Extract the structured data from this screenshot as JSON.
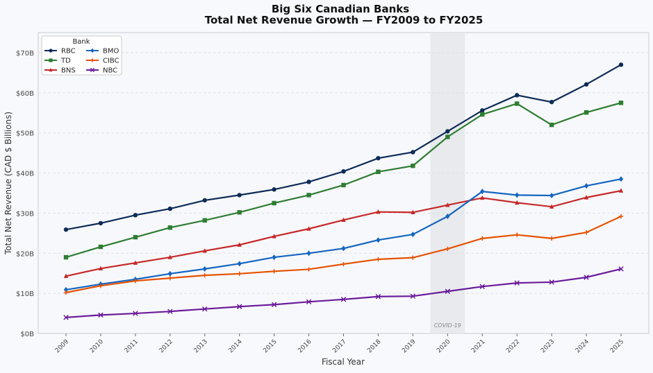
{
  "chart_data": {
    "type": "line",
    "title": "Big Six Canadian Banks",
    "subtitle": "Total Net Revenue Growth — FY2009 to FY2025",
    "xlabel": "Fiscal Year",
    "ylabel": "Total Net Revenue (CAD $ Billions)",
    "ylim": [
      0,
      75
    ],
    "yticks": [
      0,
      10,
      20,
      30,
      40,
      50,
      60,
      70
    ],
    "ytick_labels": [
      "$0B",
      "$10B",
      "$20B",
      "$30B",
      "$40B",
      "$50B",
      "$60B",
      "$70B"
    ],
    "x": [
      "2009",
      "2010",
      "2011",
      "2012",
      "2013",
      "2014",
      "2015",
      "2016",
      "2017",
      "2018",
      "2019",
      "2020",
      "2021",
      "2022",
      "2023",
      "2024",
      "2025"
    ],
    "grid": true,
    "legend": {
      "title": "Bank",
      "placement": "top-left"
    },
    "annotation": {
      "label": "COVID-19",
      "x": "2020"
    },
    "series": [
      {
        "name": "RBC",
        "color": "#0d2b57",
        "marker": "circle",
        "values": [
          25.9,
          27.5,
          29.5,
          31.1,
          33.2,
          34.5,
          35.9,
          37.8,
          40.4,
          43.7,
          45.2,
          50.4,
          55.6,
          59.4,
          57.7,
          62.1,
          67.0
        ]
      },
      {
        "name": "TD",
        "color": "#2e7d32",
        "marker": "square",
        "values": [
          19.0,
          21.6,
          24.0,
          26.4,
          28.2,
          30.2,
          32.5,
          34.5,
          37.0,
          40.3,
          41.8,
          49.0,
          54.6,
          57.3,
          52.0,
          55.1,
          57.5
        ]
      },
      {
        "name": "BNS",
        "color": "#c62828",
        "marker": "triangle",
        "values": [
          14.3,
          16.2,
          17.6,
          19.0,
          20.6,
          22.1,
          24.2,
          26.1,
          28.3,
          30.3,
          30.2,
          32.0,
          33.8,
          32.6,
          31.6,
          33.9,
          35.6
        ]
      },
      {
        "name": "BMO",
        "color": "#1565c0",
        "marker": "diamond",
        "values": [
          10.9,
          12.3,
          13.5,
          14.9,
          16.1,
          17.4,
          19.0,
          20.0,
          21.2,
          23.3,
          24.7,
          29.2,
          35.4,
          34.5,
          34.4,
          36.8,
          38.5
        ]
      },
      {
        "name": "CIBC",
        "color": "#e65100",
        "marker": "plus",
        "values": [
          10.2,
          11.9,
          13.1,
          13.8,
          14.5,
          14.9,
          15.5,
          16.0,
          17.3,
          18.5,
          18.9,
          21.1,
          23.7,
          24.6,
          23.7,
          25.2,
          29.2
        ]
      },
      {
        "name": "NBC",
        "color": "#6a1b9a",
        "marker": "x",
        "values": [
          4.0,
          4.6,
          5.0,
          5.5,
          6.1,
          6.7,
          7.2,
          7.9,
          8.5,
          9.2,
          9.3,
          10.5,
          11.7,
          12.6,
          12.8,
          14.0,
          16.1
        ]
      }
    ]
  }
}
